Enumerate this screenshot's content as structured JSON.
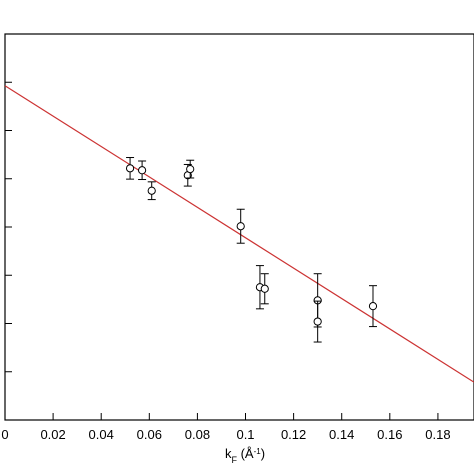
{
  "chart_data": {
    "type": "scatter",
    "title": "",
    "xlabel": "kF (Å-1)",
    "xlabel_parts": {
      "main": "k",
      "sub": "F",
      "unit": " (Å",
      "sup": "-1",
      "close": ")"
    },
    "ylabel": "",
    "xlim": [
      0,
      0.195
    ],
    "ylim": [
      0,
      1
    ],
    "x_ticks": [
      0,
      0.02,
      0.04,
      0.06,
      0.08,
      0.1,
      0.12,
      0.14,
      0.16,
      0.18
    ],
    "x_tick_labels": [
      "0",
      "0.02",
      "0.04",
      "0.06",
      "0.08",
      "0.1",
      "0.12",
      "0.14",
      "0.16",
      "0.18"
    ],
    "y_ticks": [
      0.125,
      0.25,
      0.375,
      0.5,
      0.625,
      0.75,
      0.875
    ],
    "grid": false,
    "series": [
      {
        "marker": "open-circle",
        "color": "#000000",
        "points": [
          {
            "x": 0.052,
            "y": 0.652,
            "err": 0.028
          },
          {
            "x": 0.057,
            "y": 0.647,
            "err": 0.024
          },
          {
            "x": 0.061,
            "y": 0.594,
            "err": 0.023
          },
          {
            "x": 0.076,
            "y": 0.634,
            "err": 0.028
          },
          {
            "x": 0.077,
            "y": 0.65,
            "err": 0.023
          },
          {
            "x": 0.098,
            "y": 0.502,
            "err": 0.044
          },
          {
            "x": 0.106,
            "y": 0.344,
            "err": 0.056
          },
          {
            "x": 0.108,
            "y": 0.34,
            "err": 0.039
          },
          {
            "x": 0.13,
            "y": 0.31,
            "err": 0.069
          },
          {
            "x": 0.13,
            "y": 0.255,
            "err": 0.053
          },
          {
            "x": 0.153,
            "y": 0.295,
            "err": 0.053
          }
        ]
      }
    ],
    "fit_line": {
      "color": "#cc3333",
      "x": [
        0,
        0.195
      ],
      "y": [
        0.866,
        0.098
      ]
    }
  }
}
